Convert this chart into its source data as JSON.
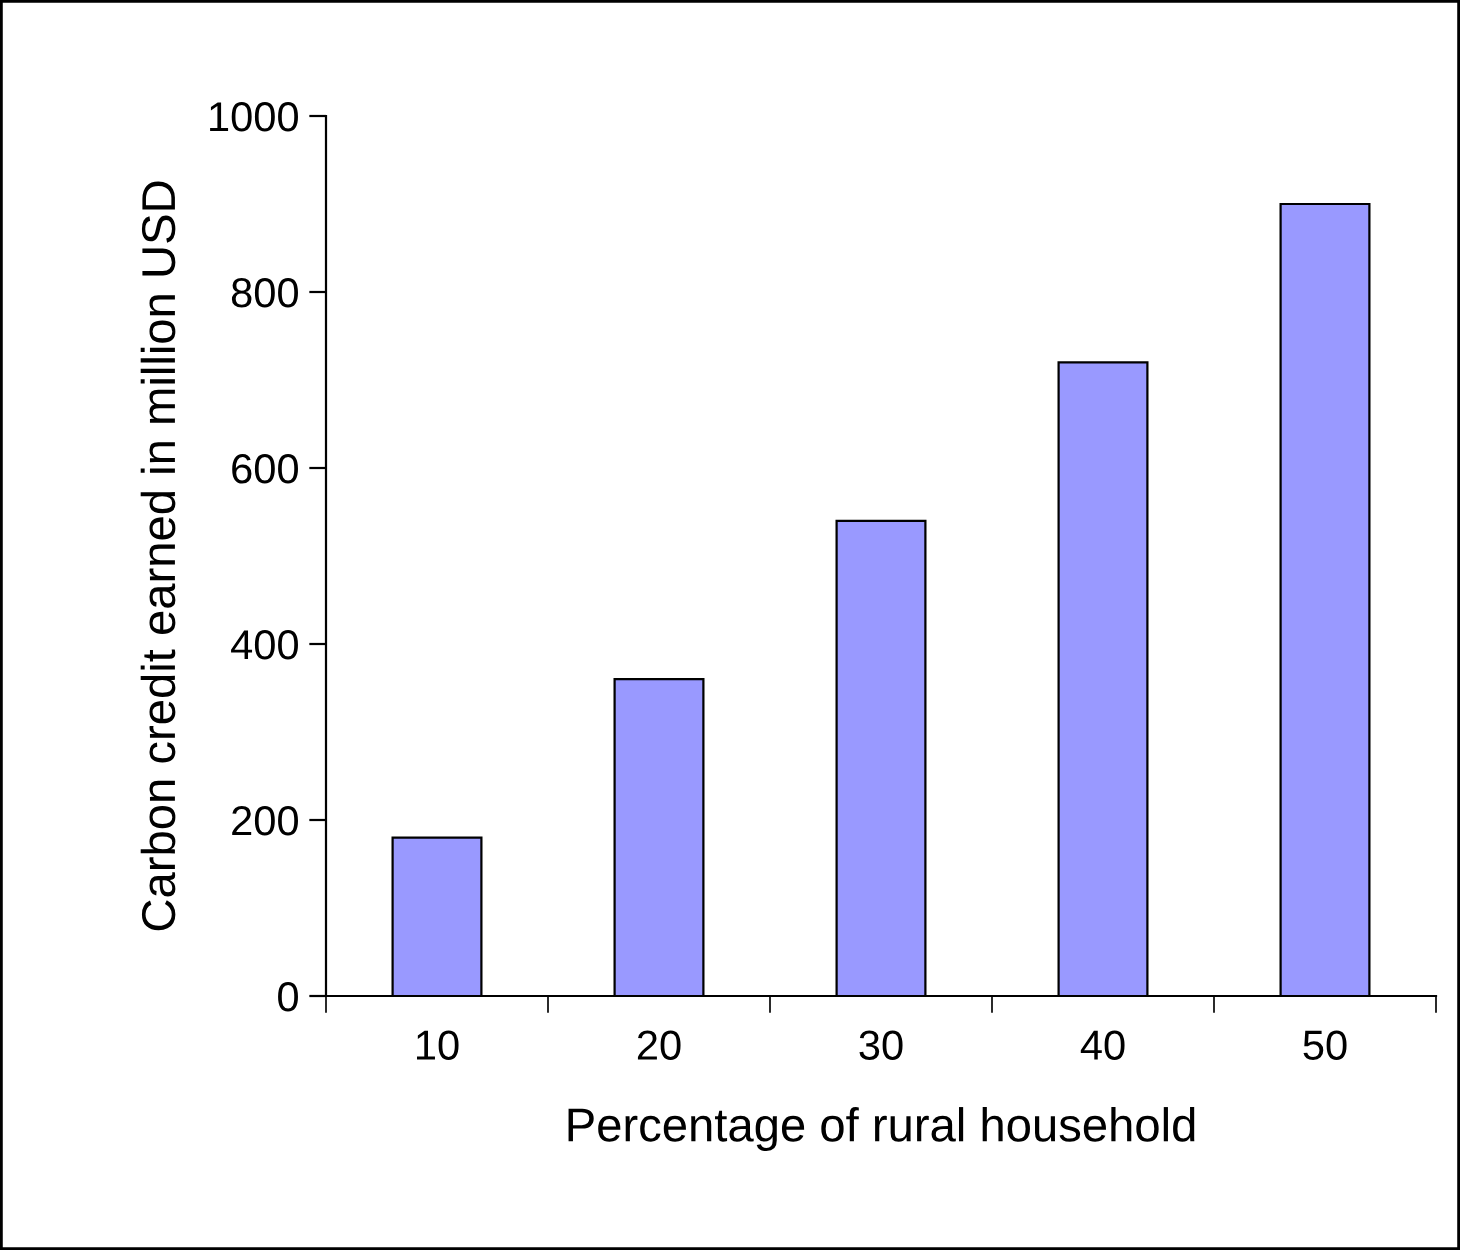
{
  "chart_data": {
    "type": "bar",
    "xlabel": "Percentage of rural household",
    "ylabel": "Carbon credit earned in million USD",
    "categories": [
      "10",
      "20",
      "30",
      "40",
      "50"
    ],
    "values": [
      180,
      360,
      540,
      720,
      900
    ],
    "color": "#9999ff",
    "ylim": [
      0,
      1000
    ],
    "yticks": [
      0,
      200,
      400,
      600,
      800,
      1000
    ],
    "grid": false,
    "legend": false
  }
}
